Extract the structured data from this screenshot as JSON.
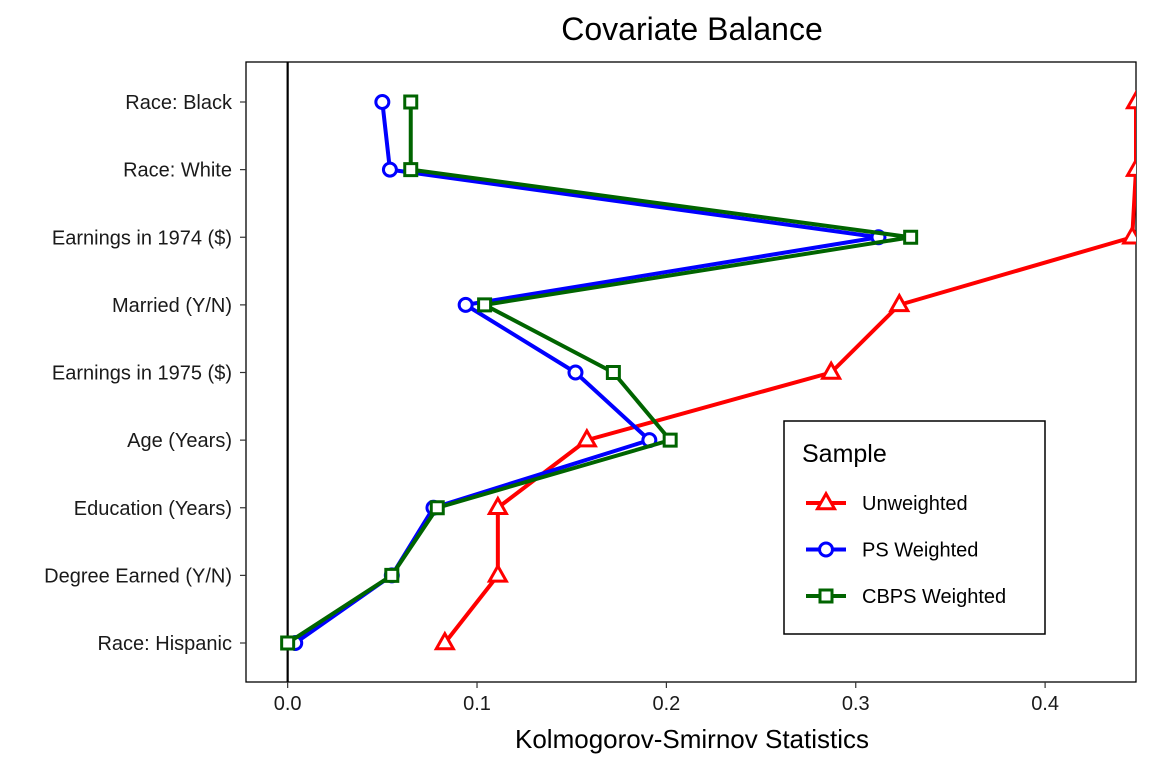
{
  "chart_data": {
    "type": "line",
    "title": "Covariate Balance",
    "xlabel": "Kolmogorov-Smirnov Statistics",
    "ylabel": "",
    "xlim": [
      -0.022,
      0.448
    ],
    "xticks": [
      0.0,
      0.1,
      0.2,
      0.3,
      0.4
    ],
    "xtick_labels": [
      "0.0",
      "0.1",
      "0.2",
      "0.3",
      "0.4"
    ],
    "reference_line_x": 0,
    "categories": [
      "Race: Black",
      "Race: White",
      "Earnings in 1974 ($)",
      "Married (Y/N)",
      "Earnings in 1975 ($)",
      "Age (Years)",
      "Education (Years)",
      "Degree Earned (Y/N)",
      "Race: Hispanic"
    ],
    "legend": {
      "title": "Sample",
      "position": "right"
    },
    "series": [
      {
        "name": "Unweighted",
        "color": "#ff0000",
        "marker": "triangle",
        "values": [
          0.448,
          0.448,
          0.446,
          0.323,
          0.287,
          0.158,
          0.111,
          0.111,
          0.083
        ]
      },
      {
        "name": "PS Weighted",
        "color": "#0000ff",
        "marker": "circle",
        "values": [
          0.05,
          0.054,
          0.312,
          0.094,
          0.152,
          0.191,
          0.077,
          0.055,
          0.004
        ]
      },
      {
        "name": "CBPS Weighted",
        "color": "#006400",
        "marker": "square",
        "values": [
          0.065,
          0.065,
          0.329,
          0.104,
          0.172,
          0.202,
          0.079,
          0.055,
          0.0
        ]
      }
    ]
  }
}
